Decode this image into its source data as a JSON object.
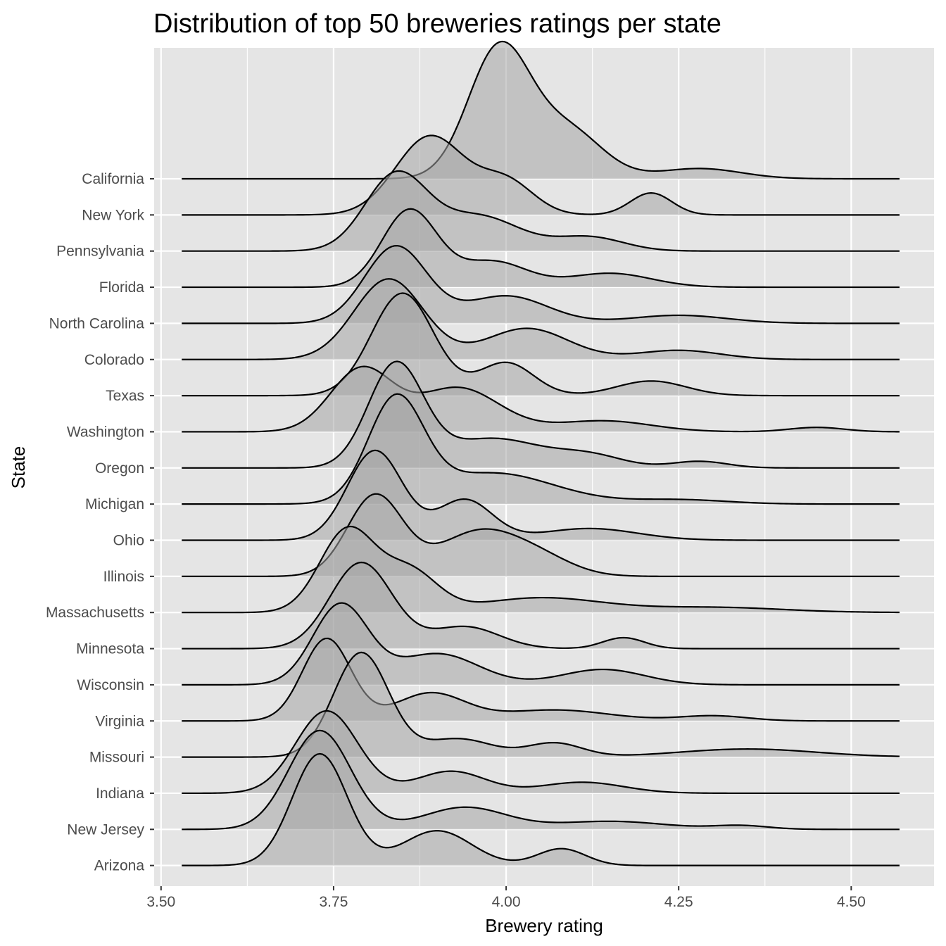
{
  "chart_data": {
    "type": "ridgeline",
    "title": "Distribution of top 50 breweries ratings per state",
    "xlabel": "Brewery rating",
    "ylabel": "State",
    "xlim": [
      3.49,
      4.62
    ],
    "x_ticks": [
      3.5,
      3.75,
      4.0,
      4.25,
      4.5
    ],
    "x_tick_labels": [
      "3.50",
      "3.75",
      "4.00",
      "4.25",
      "4.50"
    ],
    "density_range": [
      3.53,
      4.57
    ],
    "fill_color": "#a6a6a6",
    "fill_opacity": 0.55,
    "line_color": "#000000",
    "panel_background": "#e5e5e5",
    "grid_color": "#ffffff",
    "series": [
      {
        "name": "California",
        "peaks": [
          [
            3.99,
            0.045,
            3.56
          ],
          [
            4.09,
            0.05,
            1.3
          ],
          [
            4.28,
            0.06,
            0.28
          ]
        ]
      },
      {
        "name": "New York",
        "peaks": [
          [
            3.89,
            0.05,
            2.15
          ],
          [
            4.0,
            0.04,
            0.9
          ],
          [
            4.21,
            0.03,
            0.6
          ]
        ]
      },
      {
        "name": "Pennsylvania",
        "peaks": [
          [
            3.84,
            0.045,
            2.05
          ],
          [
            3.96,
            0.06,
            0.95
          ],
          [
            4.12,
            0.05,
            0.38
          ]
        ]
      },
      {
        "name": "Florida",
        "peaks": [
          [
            3.86,
            0.04,
            2.1
          ],
          [
            3.98,
            0.05,
            0.7
          ],
          [
            4.15,
            0.06,
            0.38
          ]
        ]
      },
      {
        "name": "North Carolina",
        "peaks": [
          [
            3.84,
            0.045,
            2.1
          ],
          [
            4.0,
            0.06,
            0.75
          ],
          [
            4.25,
            0.07,
            0.22
          ]
        ]
      },
      {
        "name": "Colorado",
        "peaks": [
          [
            3.83,
            0.05,
            2.2
          ],
          [
            4.03,
            0.06,
            0.85
          ],
          [
            4.25,
            0.06,
            0.25
          ]
        ]
      },
      {
        "name": "Texas",
        "peaks": [
          [
            3.85,
            0.045,
            2.8
          ],
          [
            4.0,
            0.04,
            0.9
          ],
          [
            4.21,
            0.05,
            0.4
          ]
        ]
      },
      {
        "name": "Washington",
        "peaks": [
          [
            3.79,
            0.045,
            1.7
          ],
          [
            3.93,
            0.06,
            1.2
          ],
          [
            4.14,
            0.07,
            0.3
          ],
          [
            4.45,
            0.04,
            0.12
          ]
        ]
      },
      {
        "name": "Oregon",
        "peaks": [
          [
            3.84,
            0.04,
            2.8
          ],
          [
            3.98,
            0.07,
            0.8
          ],
          [
            4.12,
            0.05,
            0.33
          ],
          [
            4.28,
            0.04,
            0.18
          ]
        ]
      },
      {
        "name": "Michigan",
        "peaks": [
          [
            3.84,
            0.04,
            2.75
          ],
          [
            3.98,
            0.09,
            0.85
          ],
          [
            4.25,
            0.07,
            0.12
          ]
        ]
      },
      {
        "name": "Ohio",
        "peaks": [
          [
            3.81,
            0.04,
            2.45
          ],
          [
            3.94,
            0.04,
            1.1
          ],
          [
            4.12,
            0.07,
            0.32
          ]
        ]
      },
      {
        "name": "Illinois",
        "peaks": [
          [
            3.81,
            0.04,
            2.2
          ],
          [
            3.96,
            0.06,
            1.2
          ],
          [
            4.05,
            0.05,
            0.4
          ]
        ]
      },
      {
        "name": "Massachusetts",
        "peaks": [
          [
            3.77,
            0.04,
            2.25
          ],
          [
            3.86,
            0.04,
            1.1
          ],
          [
            4.05,
            0.09,
            0.4
          ],
          [
            4.3,
            0.1,
            0.14
          ]
        ]
      },
      {
        "name": "Minnesota",
        "peaks": [
          [
            3.79,
            0.045,
            2.35
          ],
          [
            3.94,
            0.05,
            0.6
          ],
          [
            4.17,
            0.03,
            0.3
          ]
        ]
      },
      {
        "name": "Wisconsin",
        "peaks": [
          [
            3.76,
            0.04,
            2.18
          ],
          [
            3.9,
            0.06,
            0.85
          ],
          [
            4.14,
            0.06,
            0.42
          ]
        ]
      },
      {
        "name": "Virginia",
        "peaks": [
          [
            3.74,
            0.035,
            2.25
          ],
          [
            3.89,
            0.05,
            0.75
          ],
          [
            4.07,
            0.08,
            0.3
          ],
          [
            4.3,
            0.05,
            0.14
          ]
        ]
      },
      {
        "name": "Missouri",
        "peaks": [
          [
            3.79,
            0.04,
            2.85
          ],
          [
            3.93,
            0.05,
            0.5
          ],
          [
            4.07,
            0.04,
            0.38
          ],
          [
            4.35,
            0.1,
            0.22
          ]
        ]
      },
      {
        "name": "Indiana",
        "peaks": [
          [
            3.74,
            0.045,
            2.25
          ],
          [
            3.92,
            0.05,
            0.6
          ],
          [
            4.11,
            0.06,
            0.3
          ]
        ]
      },
      {
        "name": "New Jersey",
        "peaks": [
          [
            3.73,
            0.045,
            2.7
          ],
          [
            3.94,
            0.06,
            0.6
          ],
          [
            4.15,
            0.08,
            0.22
          ],
          [
            4.34,
            0.04,
            0.1
          ]
        ]
      },
      {
        "name": "Arizona",
        "peaks": [
          [
            3.73,
            0.04,
            3.05
          ],
          [
            3.9,
            0.05,
            0.95
          ],
          [
            4.08,
            0.035,
            0.46
          ]
        ]
      }
    ]
  }
}
